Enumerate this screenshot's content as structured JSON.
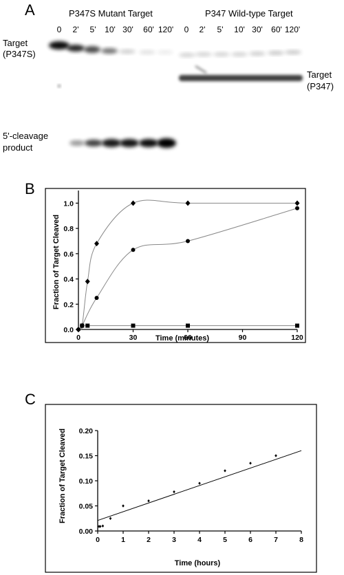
{
  "panel_a": {
    "letter": "A",
    "mutant_title": "P347S Mutant Target",
    "wildtype_title": "P347 Wild-type Target",
    "lanes": [
      "0",
      "2'",
      "5'",
      "10'",
      "30'",
      "60'",
      "120'"
    ],
    "target_left_line1": "Target",
    "target_left_line2": "(P347S)",
    "target_right_line1": "Target",
    "target_right_line2": "(P347)",
    "product_line1": "5'-cleavage",
    "product_line2": "product"
  },
  "panel_b": {
    "letter": "B"
  },
  "panel_c": {
    "letter": "C"
  },
  "chart_data": [
    {
      "type": "line",
      "panel": "B",
      "xlabel": "Time (minutes)",
      "ylabel": "Fraction of Target Cleaved",
      "xlim": [
        0,
        120
      ],
      "ylim": [
        0,
        1.1
      ],
      "xticks": [
        0,
        30,
        60,
        90,
        120
      ],
      "yticks": [
        0.0,
        0.2,
        0.4,
        0.6,
        0.8,
        1.0
      ],
      "ytick_labels": [
        "0.0",
        "0.2",
        "0.4",
        "0.6",
        "0.8",
        "1.0"
      ],
      "grid": false,
      "series": [
        {
          "marker": "diamond",
          "x": [
            0,
            2,
            5,
            10,
            30,
            60,
            120
          ],
          "y": [
            0.0,
            0.03,
            0.38,
            0.68,
            1.0,
            1.0,
            1.0
          ]
        },
        {
          "marker": "circle",
          "x": [
            0,
            2,
            10,
            30,
            60,
            120
          ],
          "y": [
            0.0,
            0.03,
            0.25,
            0.63,
            0.7,
            0.96
          ]
        },
        {
          "marker": "square",
          "x": [
            2,
            5,
            30,
            60,
            120
          ],
          "y": [
            0.03,
            0.03,
            0.03,
            0.03,
            0.03
          ]
        }
      ]
    },
    {
      "type": "scatter",
      "panel": "C",
      "xlabel": "Time (hours)",
      "ylabel": "Fraction of Target Cleaved",
      "xlim": [
        0,
        8
      ],
      "ylim": [
        0,
        0.2
      ],
      "xticks": [
        0,
        1,
        2,
        3,
        4,
        5,
        6,
        7,
        8
      ],
      "yticks": [
        0.0,
        0.05,
        0.1,
        0.15,
        0.2
      ],
      "ytick_labels": [
        "0.00",
        "0.05",
        "0.10",
        "0.15",
        "0.20"
      ],
      "grid": false,
      "points": {
        "x": [
          0.05,
          0.1,
          0.2,
          0.5,
          1,
          2,
          3,
          4,
          5,
          6,
          7
        ],
        "y": [
          0.009,
          0.009,
          0.01,
          0.025,
          0.05,
          0.06,
          0.078,
          0.095,
          0.12,
          0.135,
          0.15
        ]
      },
      "fit_line": {
        "x": [
          0,
          8
        ],
        "y": [
          0.021,
          0.16
        ]
      }
    }
  ]
}
